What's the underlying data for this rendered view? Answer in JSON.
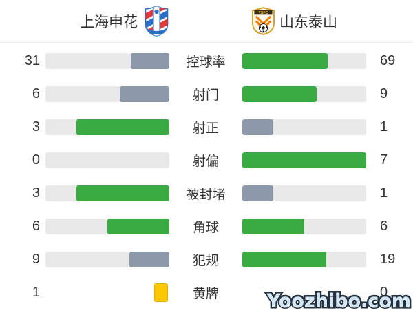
{
  "header": {
    "home": {
      "name": "上海申花"
    },
    "away": {
      "name": "山东泰山",
      "crest_text": "TSFC"
    }
  },
  "stats": {
    "rows": [
      {
        "label": "控球率",
        "home": {
          "value": "31",
          "pct": 31,
          "color": "slate"
        },
        "away": {
          "value": "69",
          "pct": 69,
          "color": "green"
        }
      },
      {
        "label": "射门",
        "home": {
          "value": "6",
          "pct": 40,
          "color": "slate"
        },
        "away": {
          "value": "9",
          "pct": 60,
          "color": "green"
        }
      },
      {
        "label": "射正",
        "home": {
          "value": "3",
          "pct": 75,
          "color": "green"
        },
        "away": {
          "value": "1",
          "pct": 25,
          "color": "slate"
        }
      },
      {
        "label": "射偏",
        "home": {
          "value": "0",
          "pct": 0,
          "color": "green"
        },
        "away": {
          "value": "7",
          "pct": 100,
          "color": "green"
        }
      },
      {
        "label": "被封堵",
        "home": {
          "value": "3",
          "pct": 75,
          "color": "green"
        },
        "away": {
          "value": "1",
          "pct": 25,
          "color": "slate"
        }
      },
      {
        "label": "角球",
        "home": {
          "value": "6",
          "pct": 50,
          "color": "green"
        },
        "away": {
          "value": "6",
          "pct": 50,
          "color": "green"
        }
      },
      {
        "label": "犯规",
        "home": {
          "value": "9",
          "pct": 32,
          "color": "slate"
        },
        "away": {
          "value": "19",
          "pct": 68,
          "color": "green"
        }
      },
      {
        "label": "黄牌",
        "home": {
          "value": "1",
          "card": true
        },
        "away": {
          "value": "0"
        }
      }
    ]
  },
  "colors": {
    "green": "#3aab42",
    "slate": "#8d99a8",
    "track": "#e9e9e9",
    "divider": "#ededed",
    "text": "#333333",
    "yellow_card": "#fcc800",
    "yellow_card_border": "#dfae08"
  },
  "watermark": "Yoozhibo.com",
  "chart_data": {
    "type": "bar",
    "orientation": "horizontal-paired",
    "categories": [
      "控球率",
      "射门",
      "射正",
      "射偏",
      "被封堵",
      "角球",
      "犯规",
      "黄牌"
    ],
    "series": [
      {
        "name": "上海申花",
        "values": [
          31,
          6,
          3,
          0,
          3,
          6,
          9,
          1
        ]
      },
      {
        "name": "山东泰山",
        "values": [
          69,
          9,
          1,
          7,
          1,
          6,
          19,
          0
        ]
      }
    ],
    "value_axis": "count (控球率 = %)",
    "legend_position": "top",
    "grid": false,
    "bar_fill_rule": "left bars grow right-to-left, right bars grow left-to-right; winner of each stat shown green, loser gray-blue; 黄牌 row rendered as yellow card icon"
  }
}
